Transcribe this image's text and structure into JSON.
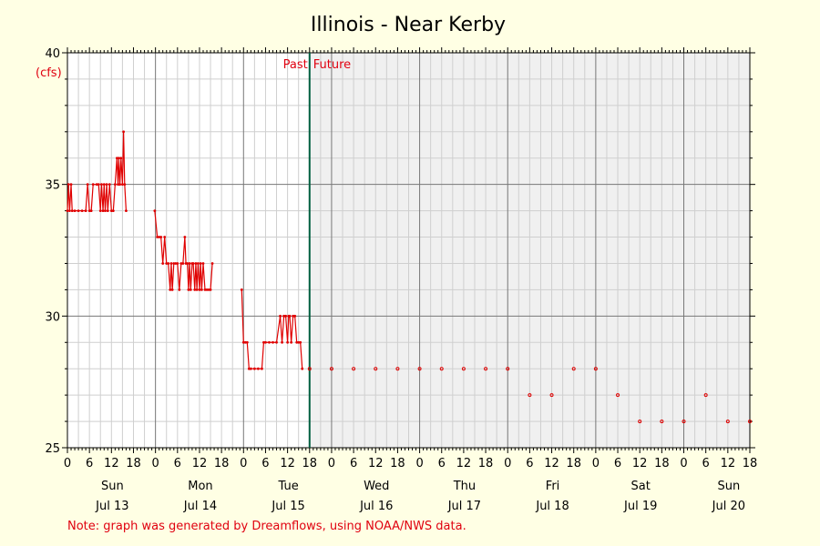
{
  "chart_data": {
    "type": "line",
    "title": "Illinois - Near Kerby",
    "ylabel": "(cfs)",
    "ylim": [
      25,
      40
    ],
    "yticks": [
      "25",
      "30",
      "35",
      "40"
    ],
    "xlim_hours": [
      0,
      186
    ],
    "hour_tick_labels": [
      "0",
      "6",
      "12",
      "18"
    ],
    "days": [
      {
        "dow": "Sun",
        "date": "Jul 13"
      },
      {
        "dow": "Mon",
        "date": "Jul 14"
      },
      {
        "dow": "Tue",
        "date": "Jul 15"
      },
      {
        "dow": "Wed",
        "date": "Jul 16"
      },
      {
        "dow": "Thu",
        "date": "Jul 17"
      },
      {
        "dow": "Fri",
        "date": "Jul 18"
      },
      {
        "dow": "Sat",
        "date": "Jul 19"
      },
      {
        "dow": "Sun",
        "date": "Jul 20"
      }
    ],
    "now_hour": 66,
    "past_label": "Past",
    "future_label": "Future",
    "colors": {
      "series": "#e00000",
      "now_line": "#006040",
      "future_bg": "#f0f0f0"
    },
    "past_segments": [
      [
        [
          0,
          34
        ],
        [
          0.3,
          35
        ],
        [
          0.6,
          34
        ],
        [
          1,
          35
        ],
        [
          1.3,
          34
        ],
        [
          2,
          34
        ],
        [
          3,
          34
        ],
        [
          4,
          34
        ],
        [
          5,
          34
        ],
        [
          5.5,
          35
        ],
        [
          6,
          34
        ],
        [
          6.5,
          34
        ],
        [
          7,
          35
        ],
        [
          8,
          35
        ],
        [
          8.5,
          35
        ],
        [
          9,
          34
        ],
        [
          9.3,
          35
        ],
        [
          9.7,
          34
        ],
        [
          10,
          35
        ],
        [
          10.3,
          34
        ],
        [
          10.7,
          35
        ],
        [
          11,
          34
        ],
        [
          11.5,
          35
        ],
        [
          12,
          34
        ],
        [
          12.5,
          34
        ],
        [
          13,
          35
        ],
        [
          13.5,
          36
        ],
        [
          13.8,
          35
        ],
        [
          14,
          36
        ],
        [
          14.3,
          35
        ],
        [
          14.6,
          36
        ],
        [
          15,
          35
        ],
        [
          15.3,
          37
        ],
        [
          15.6,
          35
        ],
        [
          16,
          34
        ]
      ],
      [
        [
          23.8,
          34
        ],
        [
          24.5,
          33
        ],
        [
          25,
          33
        ],
        [
          25.5,
          33
        ],
        [
          26,
          32
        ],
        [
          26.5,
          33
        ],
        [
          27,
          32
        ],
        [
          27.5,
          32
        ],
        [
          28,
          31
        ],
        [
          28.3,
          32
        ],
        [
          28.6,
          31
        ],
        [
          29,
          32
        ],
        [
          29.5,
          32
        ],
        [
          30,
          32
        ],
        [
          30.5,
          31
        ],
        [
          31,
          32
        ],
        [
          31.5,
          32
        ],
        [
          32,
          33
        ],
        [
          32.3,
          32
        ],
        [
          32.7,
          32
        ],
        [
          33,
          31
        ],
        [
          33.3,
          32
        ],
        [
          33.6,
          31
        ],
        [
          34,
          32
        ],
        [
          34.3,
          32
        ],
        [
          34.7,
          31
        ],
        [
          35,
          32
        ],
        [
          35.3,
          31
        ],
        [
          35.6,
          32
        ],
        [
          36,
          31
        ],
        [
          36.3,
          32
        ],
        [
          36.6,
          31
        ],
        [
          37,
          32
        ],
        [
          37.5,
          31
        ],
        [
          38,
          31
        ],
        [
          38.5,
          31
        ],
        [
          39,
          31
        ],
        [
          39.5,
          32
        ]
      ],
      [
        [
          47.5,
          31
        ],
        [
          48,
          29
        ],
        [
          48.5,
          29
        ],
        [
          49,
          29
        ],
        [
          49.5,
          28
        ],
        [
          50,
          28
        ],
        [
          51,
          28
        ],
        [
          52,
          28
        ],
        [
          53,
          28
        ],
        [
          53.5,
          29
        ],
        [
          54,
          29
        ],
        [
          55,
          29
        ],
        [
          56,
          29
        ],
        [
          57,
          29
        ],
        [
          58,
          30
        ],
        [
          58.5,
          29
        ],
        [
          59,
          30
        ],
        [
          59.5,
          30
        ],
        [
          60,
          29
        ],
        [
          60.3,
          30
        ],
        [
          60.6,
          30
        ],
        [
          61,
          29
        ],
        [
          61.5,
          30
        ],
        [
          62,
          30
        ],
        [
          62.5,
          29
        ],
        [
          63,
          29
        ],
        [
          63.5,
          29
        ],
        [
          64,
          28
        ]
      ]
    ],
    "forecast_points": [
      [
        66,
        28
      ],
      [
        72,
        28
      ],
      [
        78,
        28
      ],
      [
        84,
        28
      ],
      [
        90,
        28
      ],
      [
        96,
        28
      ],
      [
        102,
        28
      ],
      [
        108,
        28
      ],
      [
        114,
        28
      ],
      [
        120,
        28
      ],
      [
        126,
        27
      ],
      [
        132,
        27
      ],
      [
        138,
        28
      ],
      [
        144,
        28
      ],
      [
        150,
        27
      ],
      [
        156,
        26
      ],
      [
        162,
        26
      ],
      [
        168,
        26
      ],
      [
        174,
        27
      ],
      [
        180,
        26
      ],
      [
        186,
        26
      ]
    ]
  },
  "note": "Note: graph was generated by Dreamflows, using NOAA/NWS data."
}
